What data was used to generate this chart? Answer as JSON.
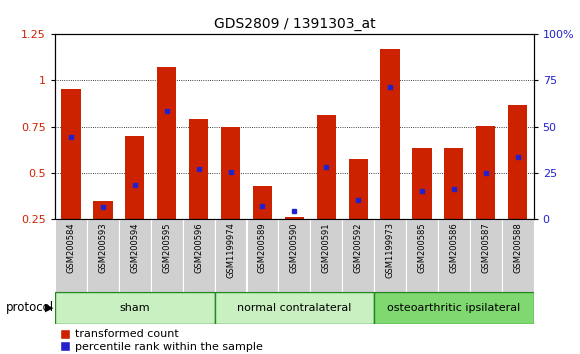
{
  "title": "GDS2809 / 1391303_at",
  "samples": [
    "GSM200584",
    "GSM200593",
    "GSM200594",
    "GSM200595",
    "GSM200596",
    "GSM1199974",
    "GSM200589",
    "GSM200590",
    "GSM200591",
    "GSM200592",
    "GSM1199973",
    "GSM200585",
    "GSM200586",
    "GSM200587",
    "GSM200588"
  ],
  "red_values": [
    0.95,
    0.35,
    0.7,
    1.07,
    0.79,
    0.75,
    0.43,
    0.265,
    0.81,
    0.575,
    1.165,
    0.635,
    0.635,
    0.755,
    0.865
  ],
  "blue_values": [
    0.695,
    0.315,
    0.435,
    0.835,
    0.52,
    0.505,
    0.325,
    0.295,
    0.535,
    0.355,
    0.965,
    0.405,
    0.415,
    0.5,
    0.585
  ],
  "groups": [
    {
      "label": "sham",
      "start": 0,
      "end": 5
    },
    {
      "label": "normal contralateral",
      "start": 5,
      "end": 10
    },
    {
      "label": "osteoarthritic ipsilateral",
      "start": 10,
      "end": 15
    }
  ],
  "group_colors": [
    "#c8f0c0",
    "#c8f0c0",
    "#80d870"
  ],
  "ylim_left": [
    0.25,
    1.25
  ],
  "ylim_right": [
    0,
    100
  ],
  "yticks_left": [
    0.25,
    0.5,
    0.75,
    1.0,
    1.25
  ],
  "yticks_right": [
    0,
    25,
    50,
    75,
    100
  ],
  "ytick_labels_right": [
    "0",
    "25",
    "50",
    "75",
    "100%"
  ],
  "bar_color": "#cc2200",
  "dot_color": "#2222cc",
  "bar_width": 0.6,
  "grid_linestyle": "dotted",
  "plot_bg_color": "#ffffff",
  "legend_red_label": "transformed count",
  "legend_blue_label": "percentile rank within the sample",
  "protocol_label": "protocol"
}
